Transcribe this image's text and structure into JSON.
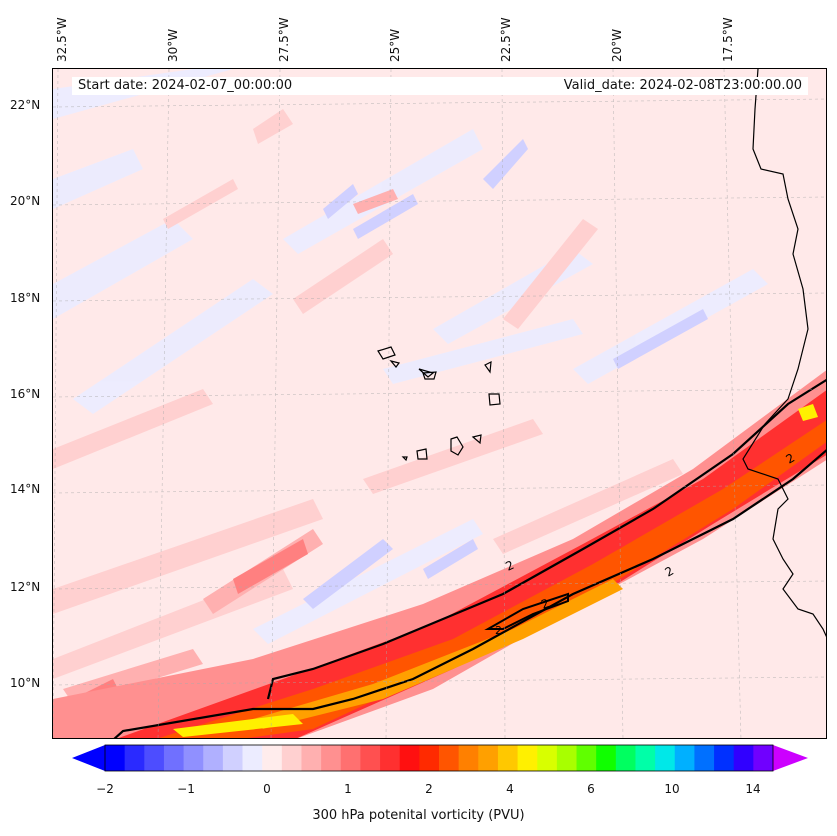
{
  "map": {
    "start_date": "Start date: 2024-02-07_00:00:00",
    "valid_date": "Valid_date: 2024-02-08T23:00:00.00",
    "lon_labels": [
      "32.5°W",
      "30°W",
      "27.5°W",
      "25°W",
      "22.5°W",
      "20°W",
      "17.5°W"
    ],
    "lat_labels": [
      "22°N",
      "20°N",
      "18°N",
      "16°N",
      "14°N",
      "12°N",
      "10°N"
    ],
    "contour_labels": [
      "2",
      "2",
      "2",
      "2",
      "2"
    ],
    "colorbar": {
      "title": "300 hPa potenital vorticity (PVU)",
      "tick_labels": [
        "−2",
        "−1",
        "0",
        "1",
        "2",
        "4",
        "6",
        "10",
        "14"
      ],
      "colors": [
        "#0000ff",
        "#2a2aff",
        "#4d4dff",
        "#7070ff",
        "#9090ff",
        "#b0b0ff",
        "#d0d0ff",
        "#ececff",
        "#ffecec",
        "#ffd0d0",
        "#ffb0b0",
        "#ff9090",
        "#ff7070",
        "#ff5050",
        "#ff3030",
        "#ff1010",
        "#ff2a00",
        "#ff5500",
        "#ff8000",
        "#ffa000",
        "#ffc800",
        "#fff000",
        "#d8ff00",
        "#a8ff00",
        "#60ff00",
        "#10ff00",
        "#00ff60",
        "#00ffa8",
        "#00e8e8",
        "#00b0ff",
        "#0070ff",
        "#0030ff",
        "#3000ff",
        "#7000ff"
      ],
      "extend_low_color": "#0000ff",
      "extend_high_color": "#cc00ff"
    }
  }
}
